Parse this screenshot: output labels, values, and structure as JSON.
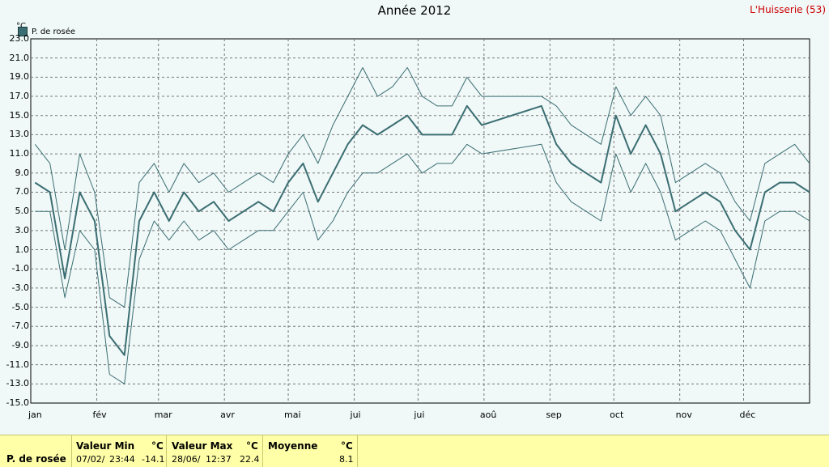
{
  "title": "Année 2012",
  "station": "L'Huisserie (53)",
  "unit": "°C",
  "chart_data": {
    "type": "line",
    "title": "Année 2012",
    "ylabel": "°C",
    "ylim": [
      -15,
      23
    ],
    "yticks": [
      "23.0",
      "21.0",
      "19.0",
      "17.0",
      "15.0",
      "13.0",
      "11.0",
      "9.0",
      "7.0",
      "5.0",
      "3.0",
      "1.0",
      "-1.0",
      "-3.0",
      "-5.0",
      "-7.0",
      "-9.0",
      "-11.0",
      "-13.0",
      "-15.0"
    ],
    "months": [
      "jan",
      "fév",
      "mar",
      "avr",
      "mai",
      "jui",
      "jui",
      "aoû",
      "sep",
      "oct",
      "nov",
      "déc"
    ],
    "legend": [
      "P. de rosée"
    ],
    "legend_position": "top-left",
    "grid": true,
    "series": [
      {
        "name": "P. de rosée",
        "color": "#3b6e72",
        "weekly": [
          {
            "x": 2,
            "min": 5,
            "avg": 8,
            "max": 12
          },
          {
            "x": 9,
            "min": 5,
            "avg": 7,
            "max": 10
          },
          {
            "x": 16,
            "min": -4,
            "avg": -2,
            "max": 1
          },
          {
            "x": 23,
            "min": 3,
            "avg": 7,
            "max": 11
          },
          {
            "x": 30,
            "min": 1,
            "avg": 4,
            "max": 7
          },
          {
            "x": 37,
            "min": -12,
            "avg": -8,
            "max": -4
          },
          {
            "x": 44,
            "min": -13,
            "avg": -10,
            "max": -5
          },
          {
            "x": 51,
            "min": 0,
            "avg": 4,
            "max": 8
          },
          {
            "x": 58,
            "min": 4,
            "avg": 7,
            "max": 10
          },
          {
            "x": 65,
            "min": 2,
            "avg": 4,
            "max": 7
          },
          {
            "x": 72,
            "min": 4,
            "avg": 7,
            "max": 10
          },
          {
            "x": 79,
            "min": 2,
            "avg": 5,
            "max": 8
          },
          {
            "x": 86,
            "min": 3,
            "avg": 6,
            "max": 9
          },
          {
            "x": 93,
            "min": 1,
            "avg": 4,
            "max": 7
          },
          {
            "x": 100,
            "min": 2,
            "avg": 5,
            "max": 8
          },
          {
            "x": 107,
            "min": 3,
            "avg": 6,
            "max": 9
          },
          {
            "x": 114,
            "min": 3,
            "avg": 5,
            "max": 8
          },
          {
            "x": 121,
            "min": 5,
            "avg": 8,
            "max": 11
          },
          {
            "x": 128,
            "min": 7,
            "avg": 10,
            "max": 13
          },
          {
            "x": 135,
            "min": 2,
            "avg": 6,
            "max": 10
          },
          {
            "x": 142,
            "min": 4,
            "avg": 9,
            "max": 14
          },
          {
            "x": 149,
            "min": 7,
            "avg": 12,
            "max": 17
          },
          {
            "x": 156,
            "min": 9,
            "avg": 14,
            "max": 20
          },
          {
            "x": 163,
            "min": 9,
            "avg": 13,
            "max": 17
          },
          {
            "x": 170,
            "min": 10,
            "avg": 14,
            "max": 18
          },
          {
            "x": 177,
            "min": 11,
            "avg": 15,
            "max": 20
          },
          {
            "x": 184,
            "min": 9,
            "avg": 13,
            "max": 17
          },
          {
            "x": 191,
            "min": 10,
            "avg": 13,
            "max": 16
          },
          {
            "x": 198,
            "min": 10,
            "avg": 13,
            "max": 16
          },
          {
            "x": 205,
            "min": 12,
            "avg": 16,
            "max": 19
          },
          {
            "x": 212,
            "min": 11,
            "avg": 14,
            "max": 17
          },
          {
            "x": 240,
            "min": 12,
            "avg": 16,
            "max": 17
          },
          {
            "x": 247,
            "min": 8,
            "avg": 12,
            "max": 16
          },
          {
            "x": 254,
            "min": 6,
            "avg": 10,
            "max": 14
          },
          {
            "x": 261,
            "min": 5,
            "avg": 9,
            "max": 13
          },
          {
            "x": 268,
            "min": 4,
            "avg": 8,
            "max": 12
          },
          {
            "x": 275,
            "min": 11,
            "avg": 15,
            "max": 18
          },
          {
            "x": 282,
            "min": 7,
            "avg": 11,
            "max": 15
          },
          {
            "x": 289,
            "min": 10,
            "avg": 14,
            "max": 17
          },
          {
            "x": 296,
            "min": 7,
            "avg": 11,
            "max": 15
          },
          {
            "x": 303,
            "min": 2,
            "avg": 5,
            "max": 8
          },
          {
            "x": 310,
            "min": 3,
            "avg": 6,
            "max": 9
          },
          {
            "x": 317,
            "min": 4,
            "avg": 7,
            "max": 10
          },
          {
            "x": 324,
            "min": 3,
            "avg": 6,
            "max": 9
          },
          {
            "x": 331,
            "min": 0,
            "avg": 3,
            "max": 6
          },
          {
            "x": 338,
            "min": -3,
            "avg": 1,
            "max": 4
          },
          {
            "x": 345,
            "min": 4,
            "avg": 7,
            "max": 10
          },
          {
            "x": 352,
            "min": 5,
            "avg": 8,
            "max": 11
          },
          {
            "x": 359,
            "min": 5,
            "avg": 8,
            "max": 12
          },
          {
            "x": 366,
            "min": 4,
            "avg": 7,
            "max": 10
          }
        ]
      }
    ]
  },
  "stats": {
    "name": "P. de rosée",
    "min": {
      "header": "Valeur Min",
      "unit": "°C",
      "date": "07/02/",
      "time": "23:44",
      "value": "-14.1"
    },
    "max": {
      "header": "Valeur Max",
      "unit": "°C",
      "date": "28/06/",
      "time": "12:37",
      "value": "22.4"
    },
    "avg": {
      "header": "Moyenne",
      "unit": "°C",
      "value": "8.1"
    }
  }
}
